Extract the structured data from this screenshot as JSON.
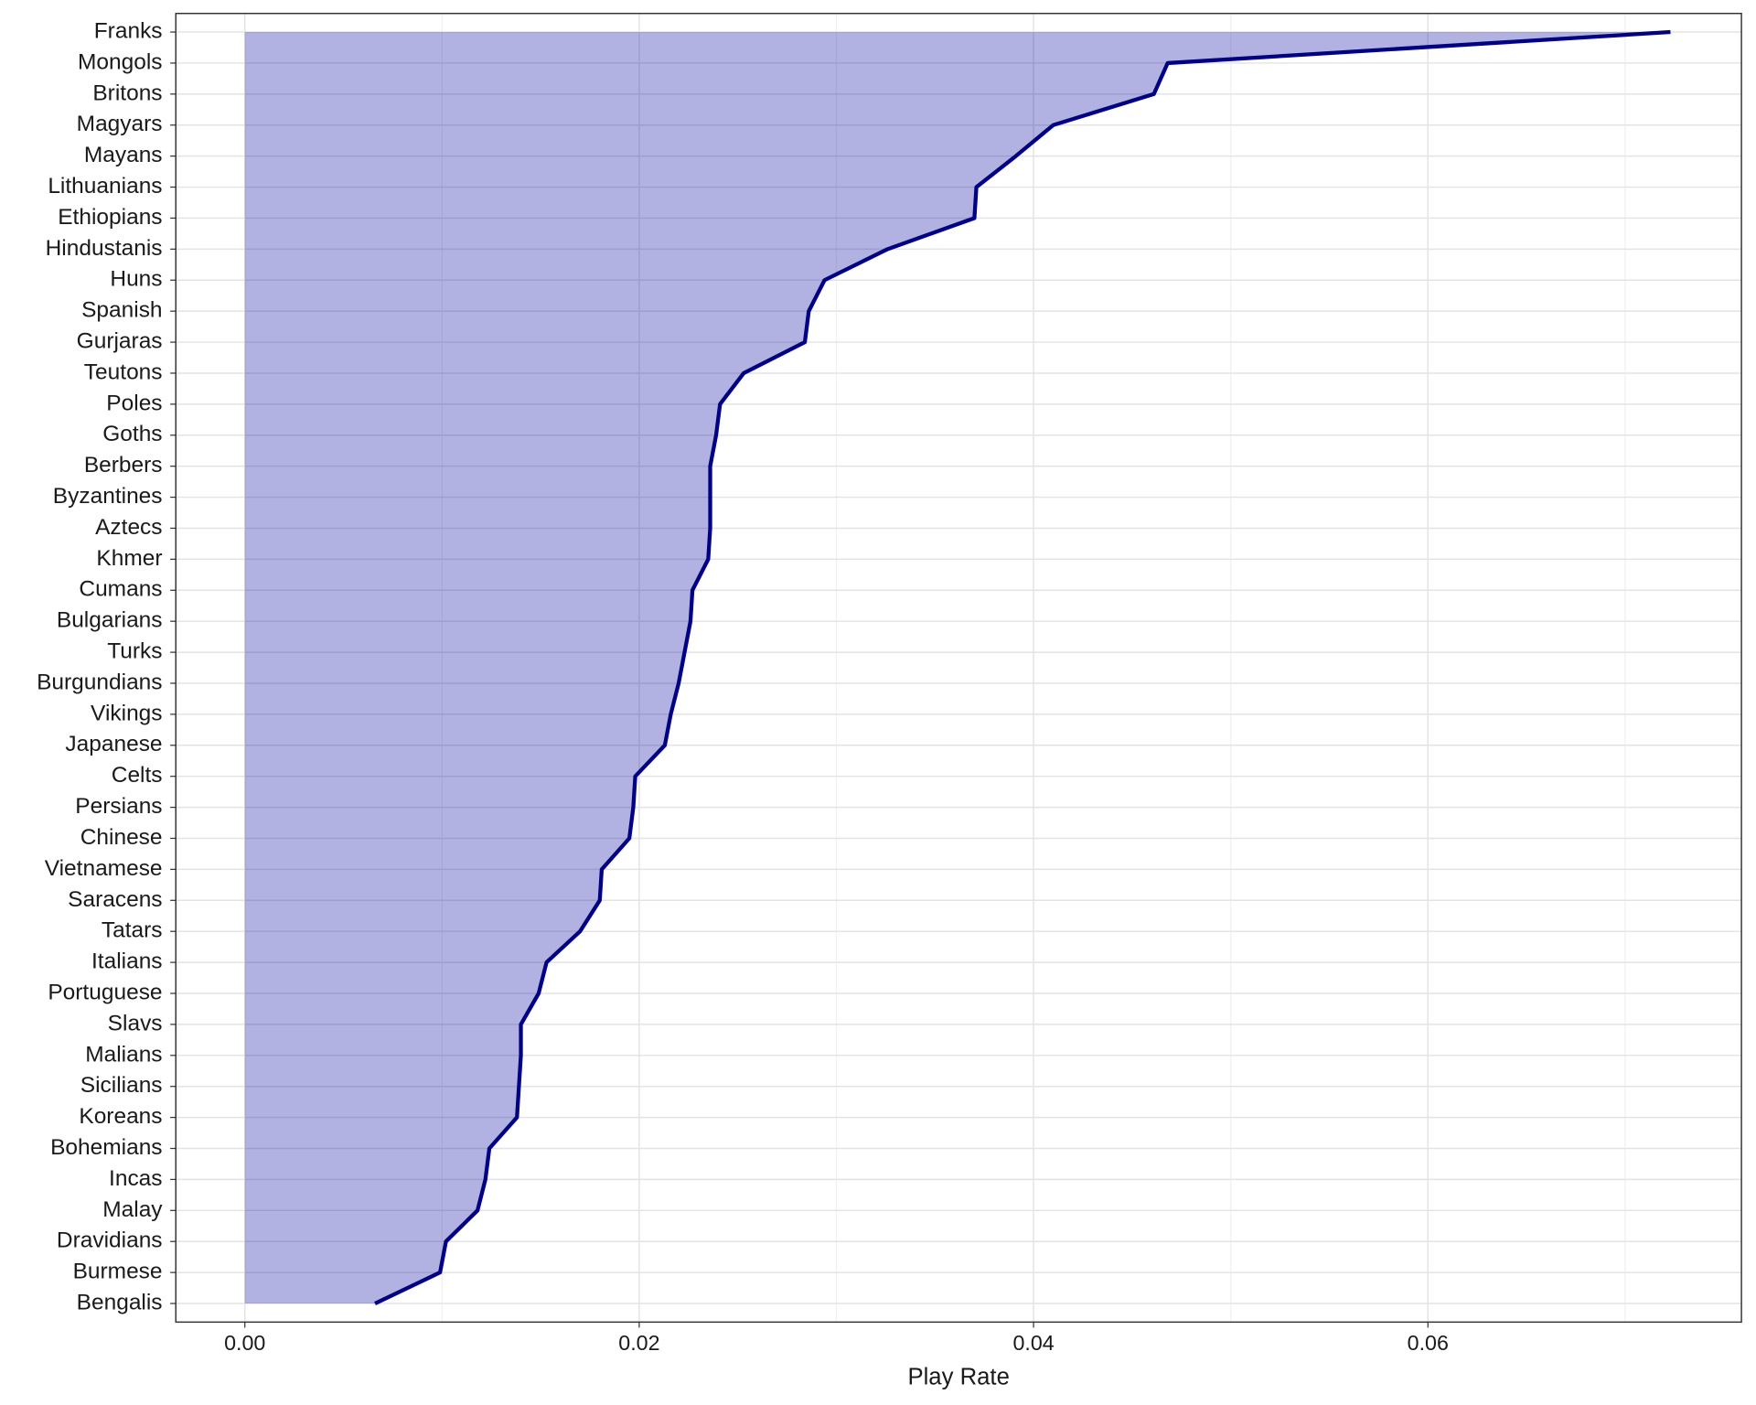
{
  "chart_data": {
    "type": "area",
    "orientation": "horizontal",
    "x_label": "Play Rate",
    "categories": [
      "Franks",
      "Mongols",
      "Britons",
      "Magyars",
      "Mayans",
      "Lithuanians",
      "Ethiopians",
      "Hindustanis",
      "Huns",
      "Spanish",
      "Gurjaras",
      "Teutons",
      "Poles",
      "Goths",
      "Berbers",
      "Byzantines",
      "Aztecs",
      "Khmer",
      "Cumans",
      "Bulgarians",
      "Turks",
      "Burgundians",
      "Vikings",
      "Japanese",
      "Celts",
      "Persians",
      "Chinese",
      "Vietnamese",
      "Saracens",
      "Tatars",
      "Italians",
      "Portuguese",
      "Slavs",
      "Malians",
      "Sicilians",
      "Koreans",
      "Bohemians",
      "Incas",
      "Malay",
      "Dravidians",
      "Burmese",
      "Bengalis"
    ],
    "values": [
      0.0723,
      0.0468,
      0.0461,
      0.041,
      0.0391,
      0.0371,
      0.037,
      0.0326,
      0.0294,
      0.0286,
      0.0284,
      0.0253,
      0.0241,
      0.0239,
      0.0236,
      0.0236,
      0.0236,
      0.0235,
      0.0227,
      0.0226,
      0.0223,
      0.022,
      0.0216,
      0.0213,
      0.0198,
      0.0197,
      0.0195,
      0.0181,
      0.018,
      0.017,
      0.0153,
      0.0149,
      0.014,
      0.014,
      0.0139,
      0.0138,
      0.0124,
      0.0122,
      0.0118,
      0.0102,
      0.0099,
      0.0066
    ],
    "line_color": "#00008b",
    "fill_color": "#0000a0",
    "xlim": [
      -0.0035,
      0.0759
    ],
    "xticks": [
      {
        "value": 0,
        "label": "0.00"
      },
      {
        "value": 0.02,
        "label": "0.02"
      },
      {
        "value": 0.04,
        "label": "0.04"
      },
      {
        "value": 0.06,
        "label": "0.06"
      }
    ],
    "grid": true
  }
}
